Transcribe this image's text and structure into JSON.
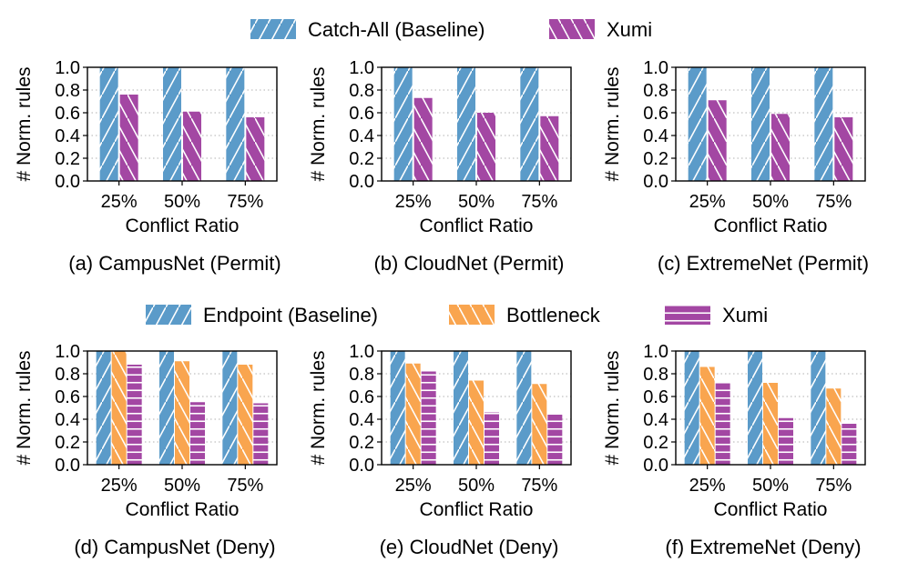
{
  "palette": {
    "blue": "#5b9bc9",
    "purple": "#a347a3",
    "orange": "#f9a54f",
    "grid": "#b0b0b0"
  },
  "legend_top": {
    "items": [
      {
        "label": "Catch-All (Baseline)",
        "color": "#5b9bc9",
        "pattern": "diag-fwd"
      },
      {
        "label": "Xumi",
        "color": "#a347a3",
        "pattern": "diag-back"
      }
    ]
  },
  "legend_bottom": {
    "items": [
      {
        "label": "Endpoint (Baseline)",
        "color": "#5b9bc9",
        "pattern": "diag-fwd"
      },
      {
        "label": "Bottleneck",
        "color": "#f9a54f",
        "pattern": "diag-back"
      },
      {
        "label": "Xumi",
        "color": "#a347a3",
        "pattern": "horiz"
      }
    ]
  },
  "chart_data": [
    {
      "type": "bar",
      "title": "(a) CampusNet (Permit)",
      "xlabel": "Conflict Ratio",
      "ylabel": "# Norm. rules",
      "categories": [
        "25%",
        "50%",
        "75%"
      ],
      "ylim": [
        0,
        1.0
      ],
      "yticks": [
        "0.0",
        "0.2",
        "0.4",
        "0.6",
        "0.8",
        "1.0"
      ],
      "grid": "y-dotted",
      "series": [
        {
          "name": "Catch-All (Baseline)",
          "values": [
            1.0,
            1.0,
            1.0
          ]
        },
        {
          "name": "Xumi",
          "values": [
            0.76,
            0.61,
            0.56
          ]
        }
      ]
    },
    {
      "type": "bar",
      "title": "(b) CloudNet (Permit)",
      "xlabel": "Conflict Ratio",
      "ylabel": "# Norm. rules",
      "categories": [
        "25%",
        "50%",
        "75%"
      ],
      "ylim": [
        0,
        1.0
      ],
      "yticks": [
        "0.0",
        "0.2",
        "0.4",
        "0.6",
        "0.8",
        "1.0"
      ],
      "grid": "y-dotted",
      "series": [
        {
          "name": "Catch-All (Baseline)",
          "values": [
            1.0,
            1.0,
            1.0
          ]
        },
        {
          "name": "Xumi",
          "values": [
            0.73,
            0.6,
            0.57
          ]
        }
      ]
    },
    {
      "type": "bar",
      "title": "(c) ExtremeNet (Permit)",
      "xlabel": "Conflict Ratio",
      "ylabel": "# Norm. rules",
      "categories": [
        "25%",
        "50%",
        "75%"
      ],
      "ylim": [
        0,
        1.0
      ],
      "yticks": [
        "0.0",
        "0.2",
        "0.4",
        "0.6",
        "0.8",
        "1.0"
      ],
      "grid": "y-dotted",
      "series": [
        {
          "name": "Catch-All (Baseline)",
          "values": [
            1.0,
            1.0,
            1.0
          ]
        },
        {
          "name": "Xumi",
          "values": [
            0.71,
            0.59,
            0.56
          ]
        }
      ]
    },
    {
      "type": "bar",
      "title": "(d) CampusNet (Deny)",
      "xlabel": "Conflict Ratio",
      "ylabel": "# Norm. rules",
      "categories": [
        "25%",
        "50%",
        "75%"
      ],
      "ylim": [
        0,
        1.0
      ],
      "yticks": [
        "0.0",
        "0.2",
        "0.4",
        "0.6",
        "0.8",
        "1.0"
      ],
      "grid": "y-dotted",
      "series": [
        {
          "name": "Endpoint (Baseline)",
          "values": [
            1.0,
            1.0,
            1.0
          ]
        },
        {
          "name": "Bottleneck",
          "values": [
            1.0,
            0.91,
            0.88
          ]
        },
        {
          "name": "Xumi",
          "values": [
            0.88,
            0.55,
            0.54
          ]
        }
      ]
    },
    {
      "type": "bar",
      "title": "(e) CloudNet (Deny)",
      "xlabel": "Conflict Ratio",
      "ylabel": "# Norm. rules",
      "categories": [
        "25%",
        "50%",
        "75%"
      ],
      "ylim": [
        0,
        1.0
      ],
      "yticks": [
        "0.0",
        "0.2",
        "0.4",
        "0.6",
        "0.8",
        "1.0"
      ],
      "grid": "y-dotted",
      "series": [
        {
          "name": "Endpoint (Baseline)",
          "values": [
            1.0,
            1.0,
            1.0
          ]
        },
        {
          "name": "Bottleneck",
          "values": [
            0.89,
            0.74,
            0.71
          ]
        },
        {
          "name": "Xumi",
          "values": [
            0.82,
            0.46,
            0.44
          ]
        }
      ]
    },
    {
      "type": "bar",
      "title": "(f) ExtremeNet (Deny)",
      "xlabel": "Conflict Ratio",
      "ylabel": "# Norm. rules",
      "categories": [
        "25%",
        "50%",
        "75%"
      ],
      "ylim": [
        0,
        1.0
      ],
      "yticks": [
        "0.0",
        "0.2",
        "0.4",
        "0.6",
        "0.8",
        "1.0"
      ],
      "grid": "y-dotted",
      "series": [
        {
          "name": "Endpoint (Baseline)",
          "values": [
            1.0,
            1.0,
            1.0
          ]
        },
        {
          "name": "Bottleneck",
          "values": [
            0.86,
            0.72,
            0.67
          ]
        },
        {
          "name": "Xumi",
          "values": [
            0.72,
            0.41,
            0.36
          ]
        }
      ]
    }
  ]
}
